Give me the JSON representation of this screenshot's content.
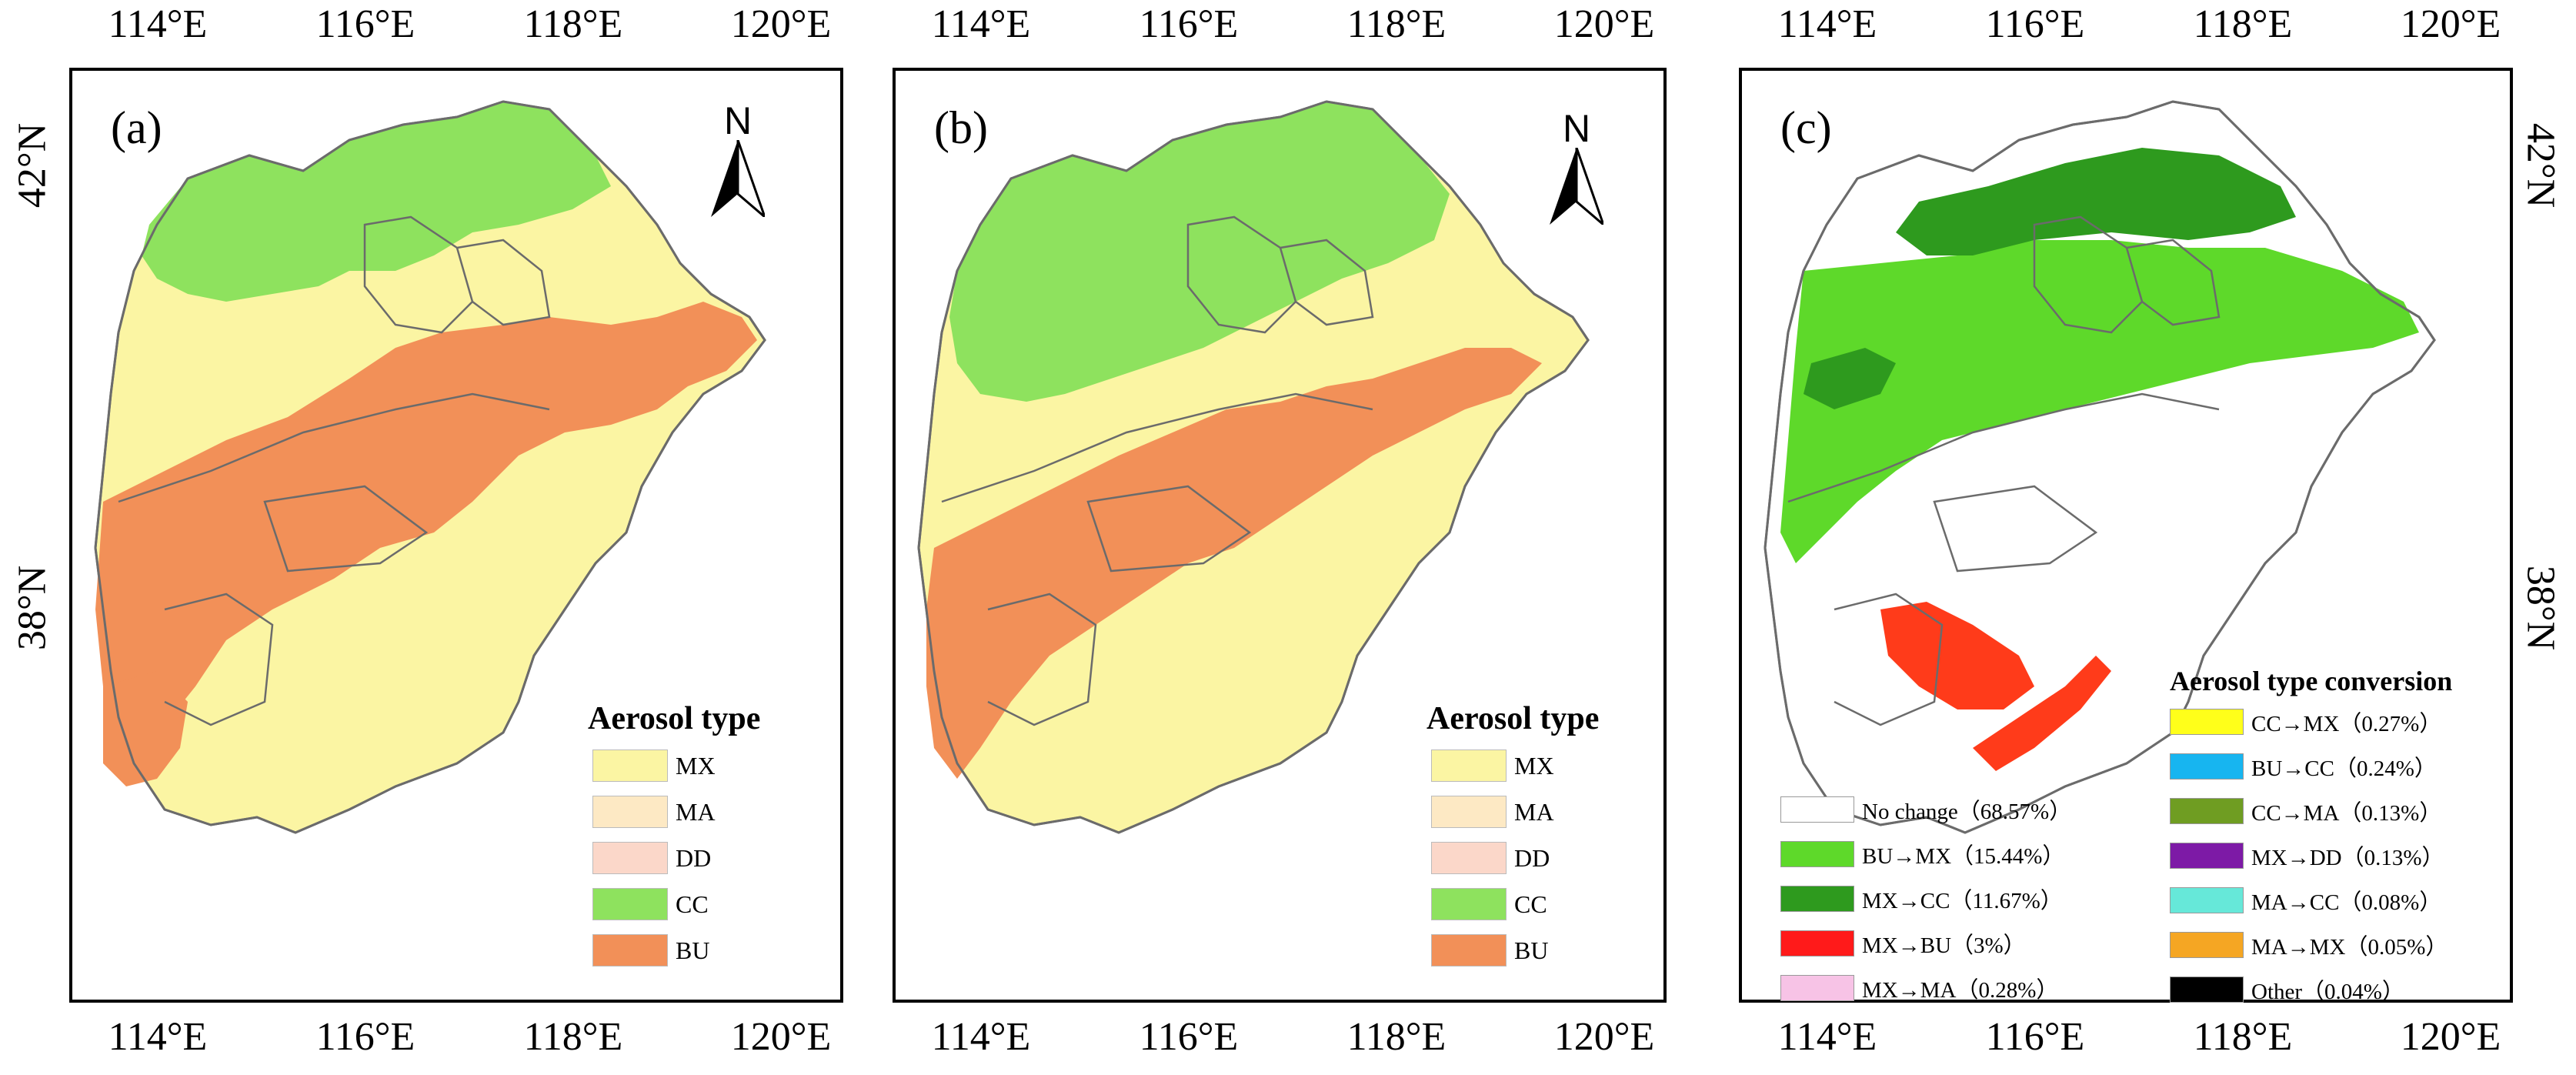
{
  "figure": {
    "lon_ticks": [
      "114°E",
      "116°E",
      "118°E",
      "120°E"
    ],
    "lat_ticks": [
      "42°N",
      "38°N"
    ],
    "north_label": "N"
  },
  "panels": [
    {
      "letter": "(a)",
      "legend_title": "Aerosol type",
      "legend_items": [
        {
          "label": "MX",
          "color": "#fbf5a3"
        },
        {
          "label": "MA",
          "color": "#fde9c4"
        },
        {
          "label": "DD",
          "color": "#fbd7c9"
        },
        {
          "label": "CC",
          "color": "#8ee25e"
        },
        {
          "label": "BU",
          "color": "#f29058"
        }
      ]
    },
    {
      "letter": "(b)",
      "legend_title": "Aerosol type",
      "legend_items": [
        {
          "label": "MX",
          "color": "#fbf5a3"
        },
        {
          "label": "MA",
          "color": "#fde9c4"
        },
        {
          "label": "DD",
          "color": "#fbd7c9"
        },
        {
          "label": "CC",
          "color": "#8ee25e"
        },
        {
          "label": "BU",
          "color": "#f29058"
        }
      ]
    },
    {
      "letter": "(c)",
      "legend_title": "Aerosol type conversion",
      "left_items": [
        {
          "label": "No change（68.57%）",
          "color": "#ffffff"
        },
        {
          "label": "BU→MX（15.44%）",
          "color": "#5ed92a"
        },
        {
          "label": "MX→CC（11.67%）",
          "color": "#2e9a1e"
        },
        {
          "label": "MX→BU（3%）",
          "color": "#ff1a1a"
        },
        {
          "label": "MX→MA（0.28%）",
          "color": "#f7c3e6"
        }
      ],
      "right_items": [
        {
          "label": "CC→MX（0.27%）",
          "color": "#ffff1a"
        },
        {
          "label": "BU→CC（0.24%）",
          "color": "#17b5f0"
        },
        {
          "label": "CC→MA（0.13%）",
          "color": "#6f9d22"
        },
        {
          "label": "MX→DD（0.13%）",
          "color": "#7d1aa6"
        },
        {
          "label": "MA→CC（0.08%）",
          "color": "#66e8d9"
        },
        {
          "label": "MA→MX（0.05%）",
          "color": "#f5a623"
        },
        {
          "label": "Other（0.04%）",
          "color": "#000000"
        }
      ]
    }
  ]
}
